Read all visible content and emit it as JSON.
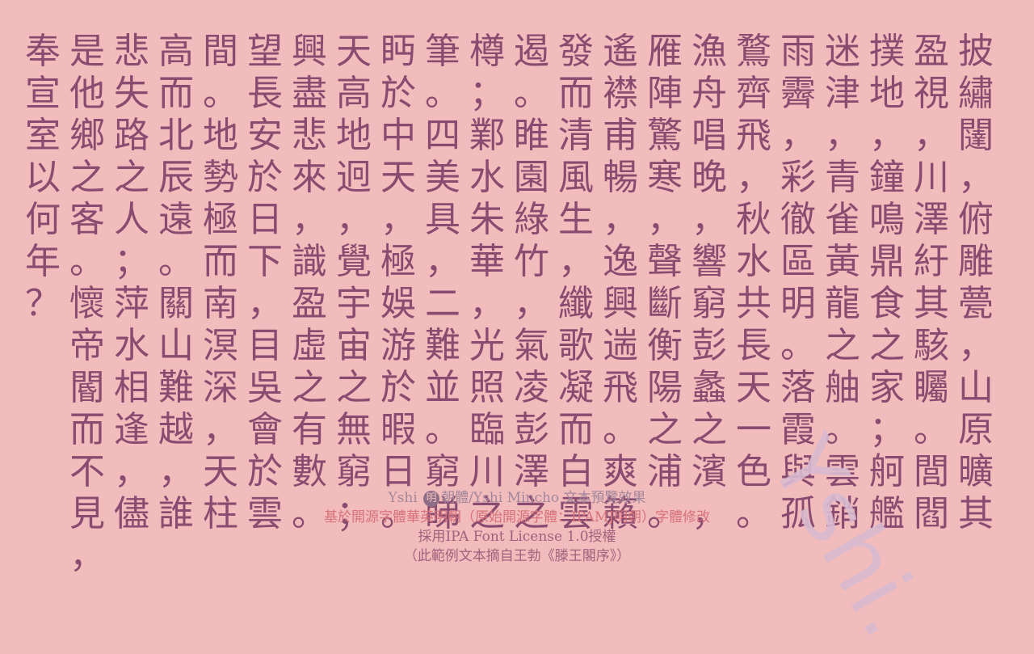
{
  "columns": [
    "披繡闥，俯雕甍，山原曠其",
    "盈視，川澤紆其駭矚。閭閻",
    "撲地，鐘鳴鼎食之家；舸艦",
    "迷津，青雀黃龍之舳。雲銷",
    "雨霽，彩徹區明。落霞與孤",
    "鶩齊飛，秋水共長天一色。",
    "漁舟唱晚，響窮彭蠡之濱，",
    "雁陣驚寒，聲斷衡陽之浦。",
    "遙襟甫暢，逸興遄飛。爽籟",
    "發而清風生，纖歌凝而白雲",
    "遏。睢園綠竹，氣凌彭澤之",
    "樽；鄴水朱華，光照臨川之",
    "筆。四美具，二難並。窮睇",
    "眄於中天，極娛游於暇日。",
    "天高地迥，覺宇宙之無窮；",
    "興盡悲來，識盈虛之有數。",
    "望長安於日下，目吳會於雲",
    "間。地勢極而南溟深，天柱",
    "高而北辰遠。關山難越，誰",
    "悲失路之人；萍水相逢，儘",
    "是他鄉之客。懷帝閽而不見，",
    "奉宣室以何年？"
  ],
  "footer": {
    "line1_prefix": "Yshi",
    "line1_badge": "明",
    "line1_suffix": "朝體/Yshi Mincho 文本預覽效果",
    "line2": "基於開源字體華英明朝（原始開源字體：IPAMJ明朝）字體修改",
    "line3": "採用IPA Font License 1.0授權",
    "line4": "（此範例文本摘自王勃《滕王閣序》）"
  },
  "watermark": "Yshi."
}
